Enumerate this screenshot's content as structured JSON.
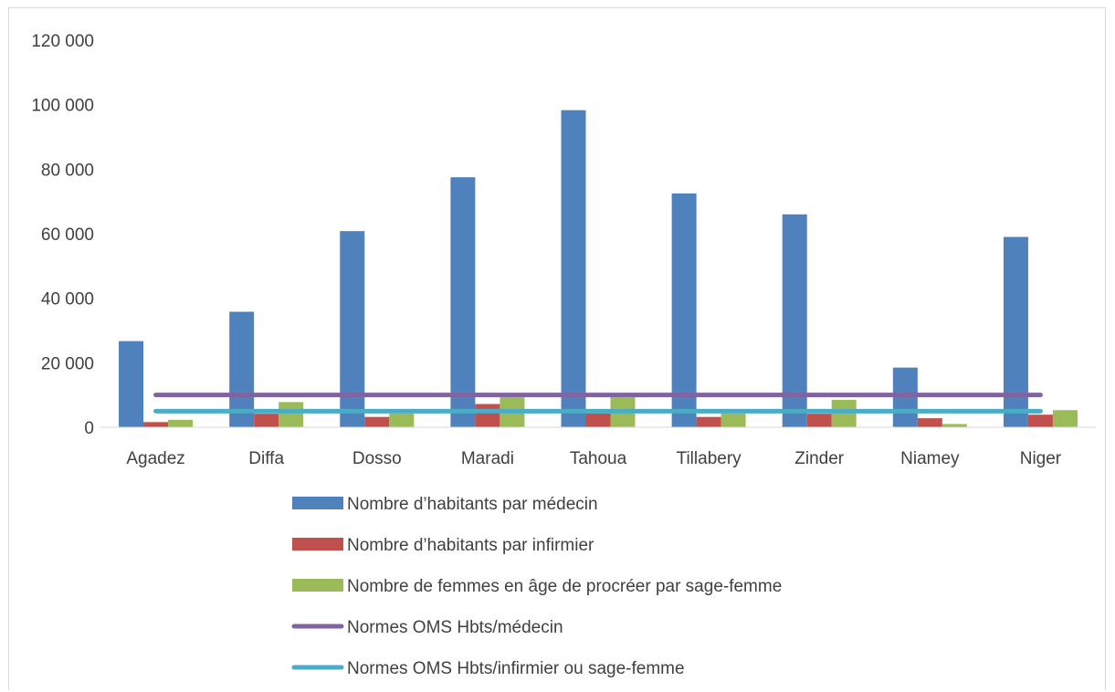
{
  "chart_data": {
    "type": "bar",
    "categories": [
      "Agadez",
      "Diffa",
      "Dosso",
      "Maradi",
      "Tahoua",
      "Tillabery",
      "Zinder",
      "Niamey",
      "Niger"
    ],
    "series": [
      {
        "name": "Nombre d’habitants par médecin",
        "kind": "bar",
        "color": "#4f81bd",
        "values": [
          26700,
          35800,
          60800,
          77500,
          98300,
          72500,
          66000,
          18500,
          59000
        ]
      },
      {
        "name": "Nombre d’habitants par infirmier",
        "kind": "bar",
        "color": "#c0504d",
        "values": [
          1600,
          4200,
          3200,
          7200,
          4300,
          3200,
          4200,
          2800,
          3900
        ]
      },
      {
        "name": "Nombre de femmes en âge de procréer par sage-femme",
        "kind": "bar",
        "color": "#9bbb59",
        "values": [
          2300,
          7800,
          4300,
          9300,
          9300,
          4300,
          8500,
          1000,
          5300
        ]
      },
      {
        "name": "Normes OMS Hbts/médecin",
        "kind": "line",
        "color": "#8064a2",
        "values": [
          10000,
          10000,
          10000,
          10000,
          10000,
          10000,
          10000,
          10000,
          10000
        ]
      },
      {
        "name": "Normes OMS Hbts/infirmier ou sage-femme",
        "kind": "line",
        "color": "#4bacc6",
        "values": [
          5000,
          5000,
          5000,
          5000,
          5000,
          5000,
          5000,
          5000,
          5000
        ]
      }
    ],
    "ylim": [
      0,
      120000
    ],
    "yticks": [
      0,
      20000,
      40000,
      60000,
      80000,
      100000,
      120000
    ],
    "ytick_labels": [
      "0",
      "20 000",
      "40 000",
      "60 000",
      "80 000",
      "100 000",
      "120 000"
    ],
    "title": "",
    "xlabel": "",
    "ylabel": "",
    "grid": false,
    "legend_position": "bottom"
  }
}
